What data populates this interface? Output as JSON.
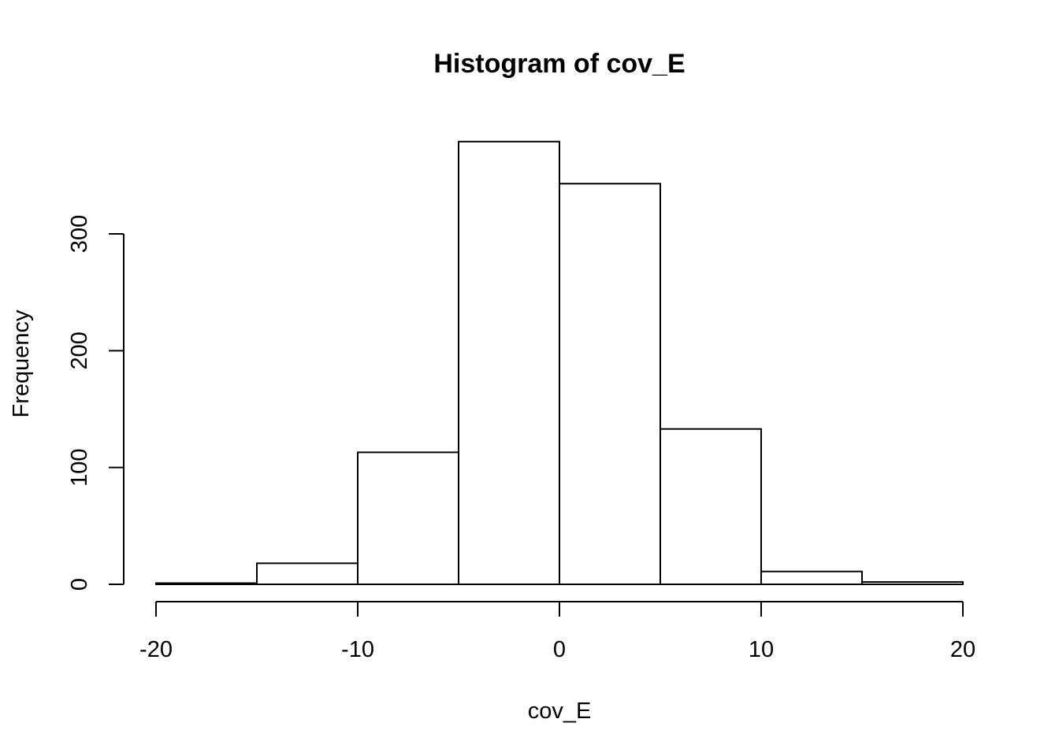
{
  "chart_data": {
    "type": "bar",
    "title": "Histogram of cov_E",
    "xlabel": "cov_E",
    "ylabel": "Frequency",
    "bin_edges": [
      -20,
      -15,
      -10,
      -5,
      0,
      5,
      10,
      15,
      20
    ],
    "values": [
      1,
      18,
      113,
      379,
      343,
      133,
      11,
      2
    ],
    "xlim": [
      -20,
      20
    ],
    "ylim": [
      0,
      379
    ],
    "x_ticks": [
      -20,
      -10,
      0,
      10,
      20
    ],
    "y_ticks": [
      0,
      100,
      200,
      300
    ],
    "grid": false,
    "colors": {
      "bar_fill": "#ffffff",
      "bar_stroke": "#000000"
    }
  }
}
